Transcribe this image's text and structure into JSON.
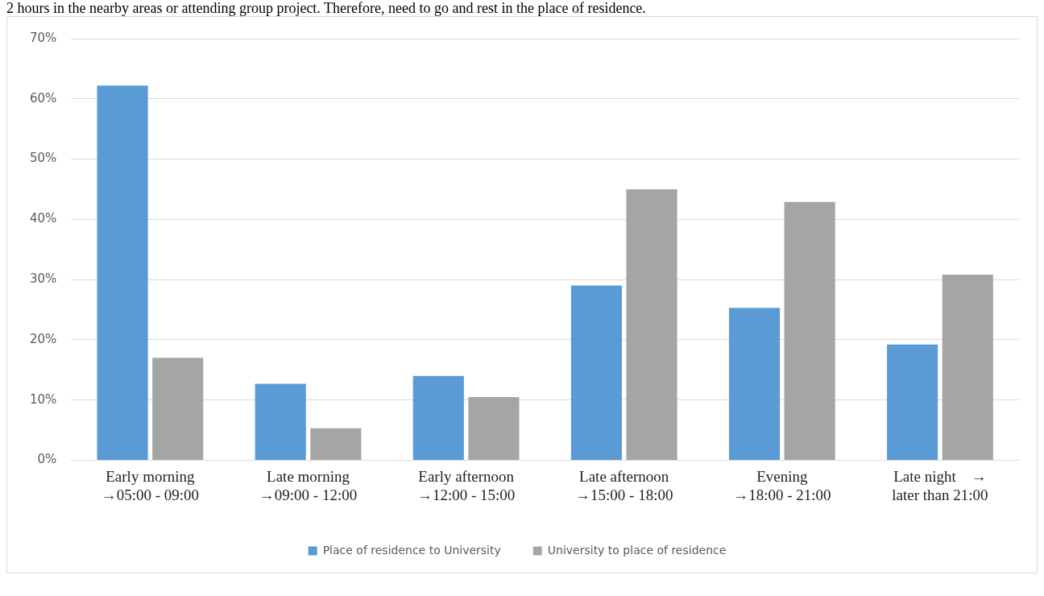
{
  "chart_data": {
    "type": "bar",
    "annotations": [
      "2 hours in the nearby areas or attending group project. Therefore, need to go and rest in the place of residence."
    ],
    "categories": [
      "Early morning\n→05:00 - 09:00",
      "Late morning\n→09:00 - 12:00",
      "Early afternoon\n→12:00 - 15:00",
      "Late afternoon\n→15:00 - 18:00",
      "Evening\n→18:00 - 21:00",
      "Late night    →\nlater than 21:00"
    ],
    "series": [
      {
        "name": "Place of residence to University",
        "color": "#5b9bd5",
        "values": [
          62.2,
          12.7,
          14.0,
          29.0,
          25.3,
          19.2
        ]
      },
      {
        "name": "University to place of residence",
        "color": "#a5a5a5",
        "values": [
          17.0,
          5.3,
          10.5,
          45.0,
          42.9,
          30.8
        ]
      }
    ],
    "ylim": [
      0,
      70
    ],
    "yticks": [
      {
        "value": 0,
        "label": "0%"
      },
      {
        "value": 10,
        "label": "10%"
      },
      {
        "value": 20,
        "label": "20%"
      },
      {
        "value": 30,
        "label": "30%"
      },
      {
        "value": 40,
        "label": "40%"
      },
      {
        "value": 50,
        "label": "50%"
      },
      {
        "value": 60,
        "label": "60%"
      },
      {
        "value": 70,
        "label": "70%"
      }
    ],
    "grid": "y",
    "legend": "bottom"
  }
}
